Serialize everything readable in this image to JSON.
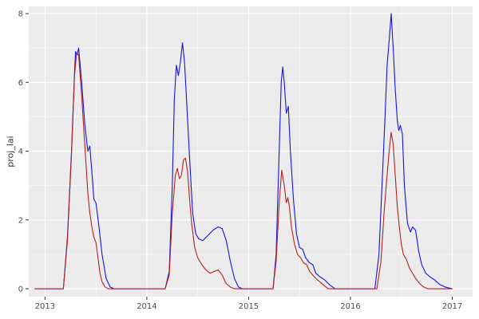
{
  "chart_data": {
    "type": "line",
    "title": "",
    "xlabel": "",
    "ylabel": "proj_lai",
    "grid": true,
    "legend": "none",
    "panel_bg": "#EBEBEB",
    "grid_color": "#FFFFFF",
    "tick_color": "#333333",
    "tick_label_color": "#4D4D4D",
    "xlim": [
      2012.84,
      2017.2
    ],
    "ylim": [
      -0.23,
      8.21
    ],
    "x_ticks": [
      2013,
      2014,
      2015,
      2016,
      2017
    ],
    "x_minor_ticks": [
      2013.5,
      2014.5,
      2015.5,
      2016.5
    ],
    "y_ticks": [
      0,
      2,
      4,
      6,
      8
    ],
    "y_minor_ticks": [
      1,
      3,
      5,
      7
    ],
    "series": [
      {
        "name": "blue-series",
        "color": "#1414DC",
        "points": [
          [
            2012.9,
            0
          ],
          [
            2013.18,
            0
          ],
          [
            2013.22,
            1.5
          ],
          [
            2013.26,
            4.0
          ],
          [
            2013.29,
            6.3
          ],
          [
            2013.3,
            6.9
          ],
          [
            2013.315,
            6.8
          ],
          [
            2013.33,
            7.0
          ],
          [
            2013.36,
            6.0
          ],
          [
            2013.39,
            4.8
          ],
          [
            2013.42,
            4.0
          ],
          [
            2013.44,
            4.15
          ],
          [
            2013.46,
            3.4
          ],
          [
            2013.48,
            2.6
          ],
          [
            2013.5,
            2.5
          ],
          [
            2013.53,
            1.8
          ],
          [
            2013.56,
            1.0
          ],
          [
            2013.6,
            0.3
          ],
          [
            2013.64,
            0.05
          ],
          [
            2013.68,
            0
          ],
          [
            2014.18,
            0
          ],
          [
            2014.22,
            0.5
          ],
          [
            2014.25,
            3.0
          ],
          [
            2014.27,
            5.5
          ],
          [
            2014.29,
            6.5
          ],
          [
            2014.31,
            6.2
          ],
          [
            2014.33,
            6.6
          ],
          [
            2014.35,
            7.15
          ],
          [
            2014.37,
            6.6
          ],
          [
            2014.39,
            5.5
          ],
          [
            2014.42,
            3.8
          ],
          [
            2014.45,
            2.2
          ],
          [
            2014.48,
            1.6
          ],
          [
            2014.51,
            1.45
          ],
          [
            2014.55,
            1.4
          ],
          [
            2014.6,
            1.55
          ],
          [
            2014.65,
            1.7
          ],
          [
            2014.7,
            1.8
          ],
          [
            2014.74,
            1.75
          ],
          [
            2014.78,
            1.4
          ],
          [
            2014.82,
            0.8
          ],
          [
            2014.86,
            0.3
          ],
          [
            2014.9,
            0.05
          ],
          [
            2014.94,
            0
          ],
          [
            2015.24,
            0
          ],
          [
            2015.27,
            1.0
          ],
          [
            2015.3,
            4.0
          ],
          [
            2015.32,
            6.0
          ],
          [
            2015.335,
            6.45
          ],
          [
            2015.35,
            6.0
          ],
          [
            2015.37,
            5.1
          ],
          [
            2015.39,
            5.3
          ],
          [
            2015.41,
            4.0
          ],
          [
            2015.44,
            2.6
          ],
          [
            2015.47,
            1.6
          ],
          [
            2015.5,
            1.2
          ],
          [
            2015.53,
            1.15
          ],
          [
            2015.56,
            0.9
          ],
          [
            2015.6,
            0.75
          ],
          [
            2015.63,
            0.7
          ],
          [
            2015.66,
            0.45
          ],
          [
            2015.7,
            0.35
          ],
          [
            2015.75,
            0.25
          ],
          [
            2015.8,
            0.1
          ],
          [
            2015.85,
            0
          ],
          [
            2016.24,
            0
          ],
          [
            2016.28,
            1.0
          ],
          [
            2016.31,
            3.0
          ],
          [
            2016.34,
            5.0
          ],
          [
            2016.36,
            6.5
          ],
          [
            2016.38,
            7.2
          ],
          [
            2016.4,
            8.0
          ],
          [
            2016.42,
            7.0
          ],
          [
            2016.44,
            5.8
          ],
          [
            2016.46,
            4.9
          ],
          [
            2016.475,
            4.6
          ],
          [
            2016.49,
            4.75
          ],
          [
            2016.51,
            4.5
          ],
          [
            2016.53,
            3.0
          ],
          [
            2016.56,
            1.9
          ],
          [
            2016.59,
            1.65
          ],
          [
            2016.61,
            1.8
          ],
          [
            2016.64,
            1.7
          ],
          [
            2016.67,
            1.1
          ],
          [
            2016.7,
            0.7
          ],
          [
            2016.74,
            0.45
          ],
          [
            2016.78,
            0.35
          ],
          [
            2016.83,
            0.25
          ],
          [
            2016.88,
            0.12
          ],
          [
            2016.93,
            0.05
          ],
          [
            2017.0,
            0
          ]
        ]
      },
      {
        "name": "red-series",
        "color": "#B22222",
        "points": [
          [
            2012.9,
            0
          ],
          [
            2013.18,
            0
          ],
          [
            2013.22,
            1.4
          ],
          [
            2013.26,
            3.9
          ],
          [
            2013.29,
            6.2
          ],
          [
            2013.31,
            6.85
          ],
          [
            2013.33,
            6.8
          ],
          [
            2013.36,
            5.6
          ],
          [
            2013.39,
            4.2
          ],
          [
            2013.42,
            2.8
          ],
          [
            2013.44,
            2.2
          ],
          [
            2013.46,
            1.8
          ],
          [
            2013.48,
            1.5
          ],
          [
            2013.5,
            1.35
          ],
          [
            2013.52,
            0.9
          ],
          [
            2013.54,
            0.45
          ],
          [
            2013.56,
            0.2
          ],
          [
            2013.59,
            0.05
          ],
          [
            2013.62,
            0
          ],
          [
            2014.18,
            0
          ],
          [
            2014.22,
            0.4
          ],
          [
            2014.25,
            2.2
          ],
          [
            2014.28,
            3.3
          ],
          [
            2014.3,
            3.5
          ],
          [
            2014.32,
            3.2
          ],
          [
            2014.34,
            3.3
          ],
          [
            2014.36,
            3.75
          ],
          [
            2014.38,
            3.8
          ],
          [
            2014.4,
            3.4
          ],
          [
            2014.42,
            2.6
          ],
          [
            2014.44,
            1.9
          ],
          [
            2014.47,
            1.2
          ],
          [
            2014.5,
            0.9
          ],
          [
            2014.54,
            0.7
          ],
          [
            2014.58,
            0.55
          ],
          [
            2014.62,
            0.45
          ],
          [
            2014.66,
            0.5
          ],
          [
            2014.7,
            0.55
          ],
          [
            2014.74,
            0.4
          ],
          [
            2014.78,
            0.15
          ],
          [
            2014.82,
            0.05
          ],
          [
            2014.86,
            0
          ],
          [
            2015.24,
            0
          ],
          [
            2015.27,
            0.8
          ],
          [
            2015.3,
            2.5
          ],
          [
            2015.325,
            3.45
          ],
          [
            2015.35,
            3.0
          ],
          [
            2015.37,
            2.5
          ],
          [
            2015.385,
            2.65
          ],
          [
            2015.4,
            2.4
          ],
          [
            2015.42,
            1.8
          ],
          [
            2015.45,
            1.3
          ],
          [
            2015.48,
            1.0
          ],
          [
            2015.51,
            0.9
          ],
          [
            2015.54,
            0.75
          ],
          [
            2015.57,
            0.7
          ],
          [
            2015.6,
            0.5
          ],
          [
            2015.63,
            0.4
          ],
          [
            2015.66,
            0.3
          ],
          [
            2015.7,
            0.2
          ],
          [
            2015.74,
            0.1
          ],
          [
            2015.78,
            0
          ],
          [
            2016.26,
            0
          ],
          [
            2016.3,
            0.8
          ],
          [
            2016.33,
            2.2
          ],
          [
            2016.36,
            3.3
          ],
          [
            2016.38,
            4.0
          ],
          [
            2016.4,
            4.55
          ],
          [
            2016.42,
            4.2
          ],
          [
            2016.44,
            3.3
          ],
          [
            2016.46,
            2.4
          ],
          [
            2016.48,
            1.8
          ],
          [
            2016.5,
            1.3
          ],
          [
            2016.52,
            1.0
          ],
          [
            2016.55,
            0.85
          ],
          [
            2016.58,
            0.6
          ],
          [
            2016.61,
            0.45
          ],
          [
            2016.64,
            0.3
          ],
          [
            2016.68,
            0.15
          ],
          [
            2016.72,
            0.05
          ],
          [
            2016.76,
            0
          ],
          [
            2017.0,
            0
          ]
        ]
      }
    ]
  }
}
